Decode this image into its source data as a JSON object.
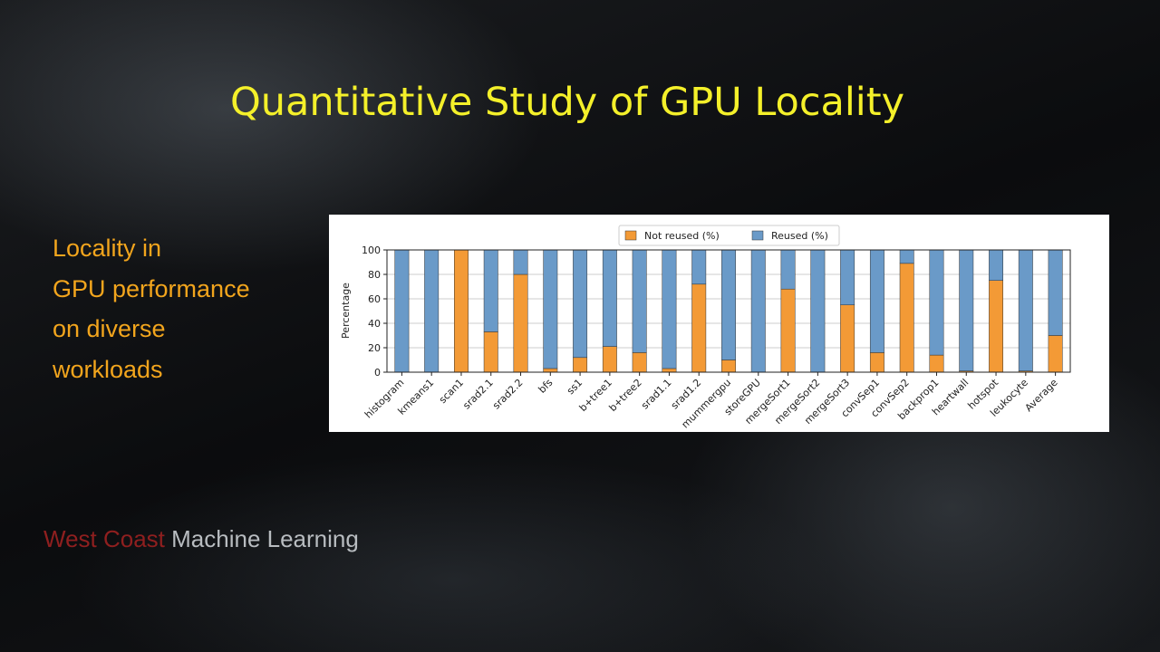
{
  "slide": {
    "title": "Quantitative Study of GPU Locality",
    "bullet_lines": [
      "Locality in",
      "GPU performance",
      "on diverse",
      "workloads"
    ],
    "footer": [
      "West Coast",
      "Machine Learning"
    ]
  },
  "chart_data": {
    "type": "stacked_bar",
    "y_label": "Percentage",
    "categories": [
      "histogram",
      "kmeans1",
      "scan1",
      "srad2.1",
      "srad2.2",
      "bfs",
      "ss1",
      "b+tree1",
      "b+tree2",
      "srad1.1",
      "srad1.2",
      "mummergpu",
      "storeGPU",
      "mergeSort1",
      "mergeSort2",
      "mergeSort3",
      "convSep1",
      "convSep2",
      "backprop1",
      "heartwall",
      "hotspot",
      "leukocyte",
      "Average"
    ],
    "series": [
      {
        "name": "Not reused (%)",
        "color": "#f39a36",
        "values": [
          0,
          0,
          100,
          33,
          80,
          3,
          12,
          21,
          16,
          3,
          72,
          10,
          0,
          68,
          0,
          55,
          16,
          89,
          14,
          1,
          75,
          1,
          30
        ]
      },
      {
        "name": "Reused (%)",
        "color": "#6a9ac8",
        "values": [
          100,
          100,
          0,
          67,
          20,
          97,
          88,
          79,
          84,
          97,
          28,
          90,
          100,
          32,
          100,
          45,
          84,
          11,
          86,
          99,
          25,
          99,
          70
        ]
      }
    ],
    "ylim": [
      0,
      100
    ],
    "yticks": [
      0,
      20,
      40,
      60,
      80,
      100
    ],
    "grid": true,
    "legend": "top"
  }
}
